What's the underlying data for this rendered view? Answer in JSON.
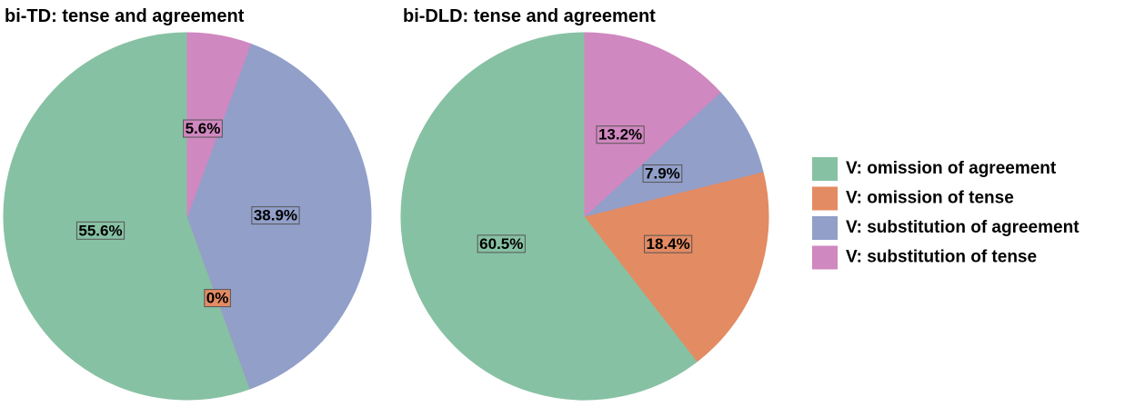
{
  "chart_data": [
    {
      "type": "pie",
      "title": "bi-TD: tense and agreement",
      "categories": [
        "V: omission of agreement",
        "V: omission of tense",
        "V: substitution of agreement",
        "V: substitution of tense"
      ],
      "values": [
        55.6,
        0,
        38.9,
        5.6
      ],
      "value_labels": [
        "55.6%",
        "0%",
        "38.9%",
        "5.6%"
      ],
      "colors": [
        "#87c1a3",
        "#e38b62",
        "#919fc9",
        "#d088c0"
      ]
    },
    {
      "type": "pie",
      "title": "bi-DLD: tense and agreement",
      "categories": [
        "V: omission of agreement",
        "V: omission of tense",
        "V: substitution of agreement",
        "V: substitution of tense"
      ],
      "values": [
        60.5,
        18.4,
        7.9,
        13.2
      ],
      "value_labels": [
        "60.5%",
        "18.4%",
        "7.9%",
        "13.2%"
      ],
      "colors": [
        "#87c1a3",
        "#e38b62",
        "#919fc9",
        "#d088c0"
      ]
    }
  ]
}
